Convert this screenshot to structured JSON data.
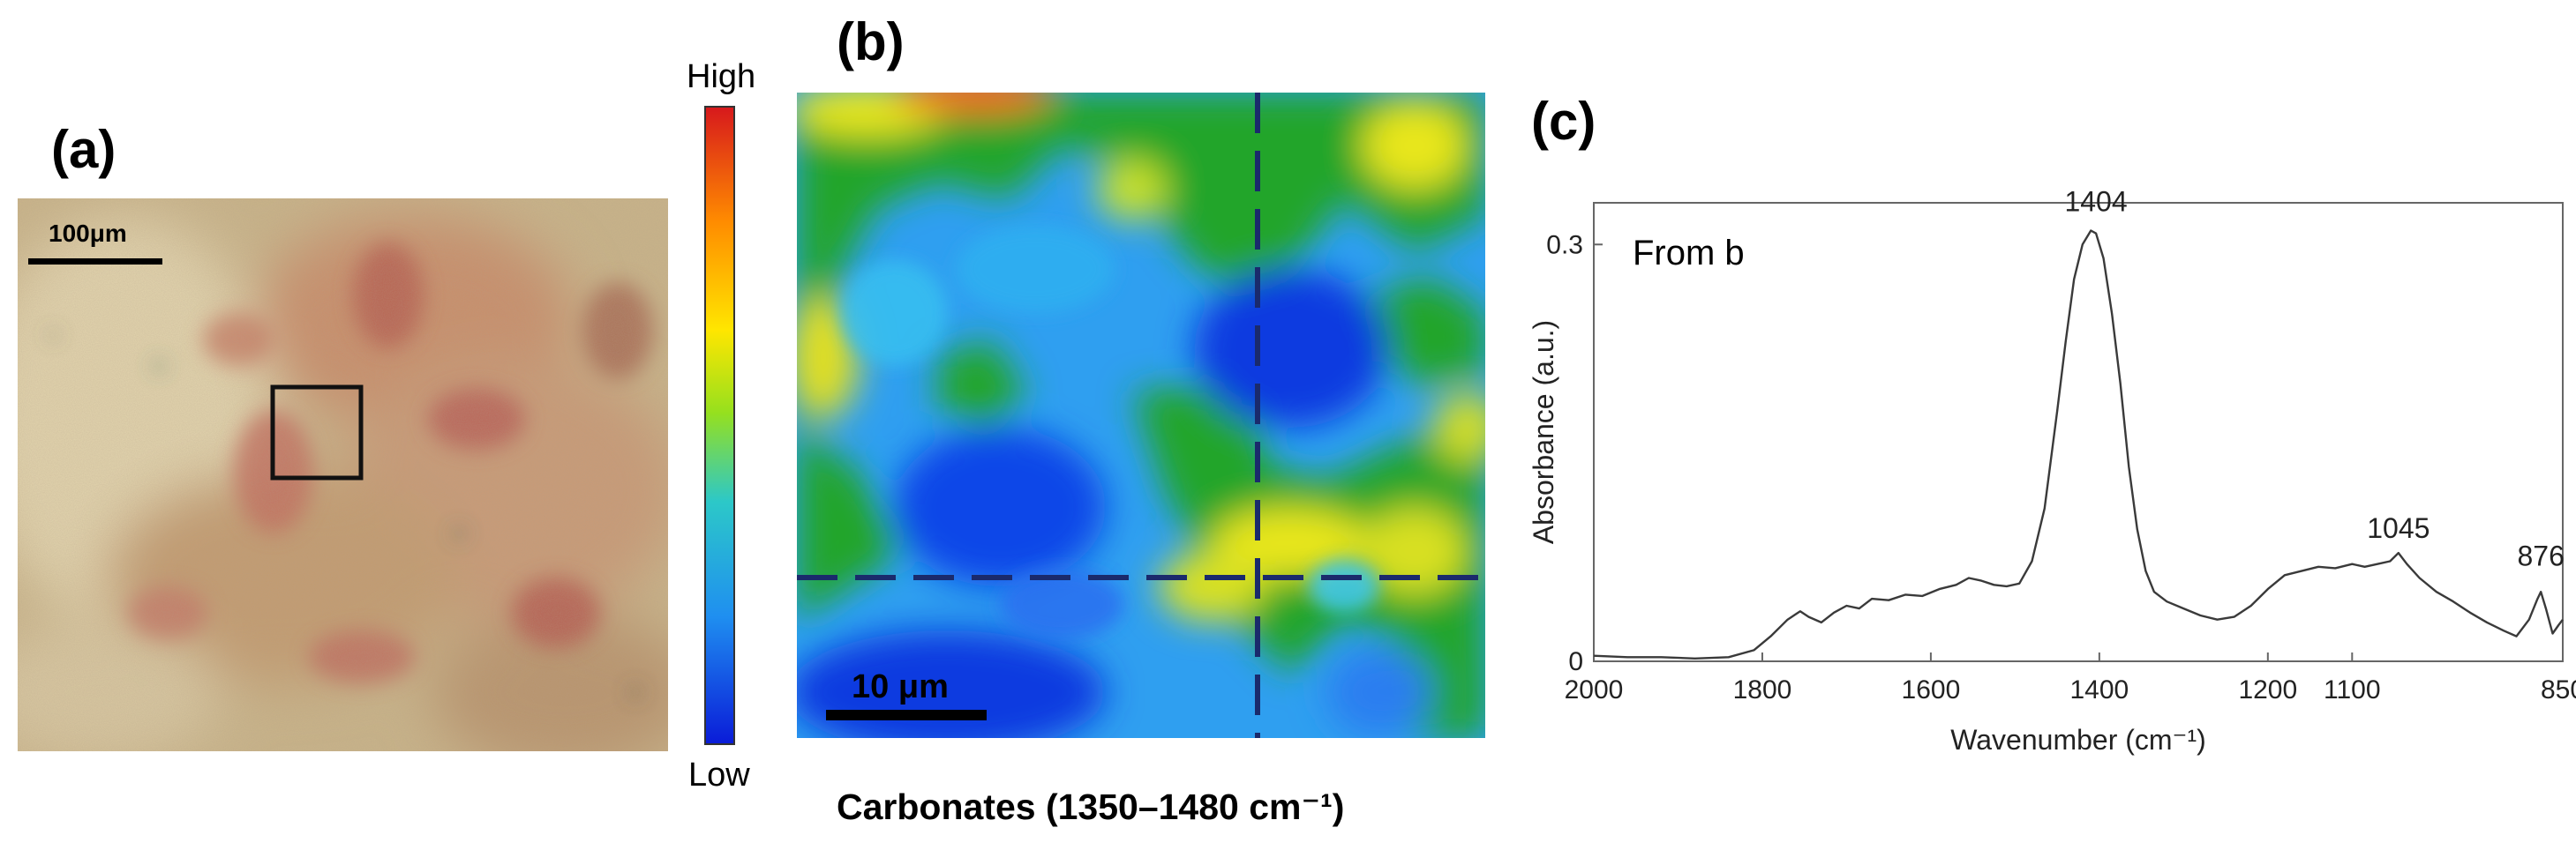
{
  "panels": {
    "a": {
      "label": "(a)",
      "scale_bar": "100μm"
    },
    "b": {
      "label": "(b)",
      "colorbar": {
        "high": "High",
        "low": "Low"
      },
      "scale_bar": "10 μm",
      "caption": "Carbonates (1350–1480 cm⁻¹)"
    },
    "c": {
      "label": "(c)",
      "annotation": "From b"
    }
  },
  "colors": {
    "map_low": "#0a1cd8",
    "map_mid": "#32b4f0",
    "map_green": "#1fa528",
    "map_high": "#d7191c",
    "crosshair": "#1a2a6c",
    "spectrum_line": "#3a3a3a"
  },
  "chart_data": {
    "type": "line",
    "title": "",
    "xlabel": "Wavenumber (cm⁻¹)",
    "ylabel": "Absorbance (a.u.)",
    "xlim": [
      2000,
      850
    ],
    "ylim": [
      0,
      0.33
    ],
    "x_reversed": true,
    "xticks": [
      2000,
      1800,
      1600,
      1400,
      1200,
      1100,
      850
    ],
    "yticks": [
      0,
      0.3
    ],
    "grid": false,
    "peak_labels": [
      {
        "x": 1404,
        "y": 0.31,
        "label": "1404"
      },
      {
        "x": 1045,
        "y": 0.075,
        "label": "1045"
      },
      {
        "x": 876,
        "y": 0.055,
        "label": "876"
      }
    ],
    "series": [
      {
        "x": [
          2000,
          1960,
          1920,
          1880,
          1840,
          1810,
          1790,
          1770,
          1755,
          1745,
          1730,
          1715,
          1700,
          1685,
          1670,
          1650,
          1630,
          1610,
          1590,
          1570,
          1555,
          1540,
          1525,
          1510,
          1495,
          1480,
          1465,
          1450,
          1440,
          1430,
          1420,
          1410,
          1404,
          1395,
          1385,
          1375,
          1365,
          1355,
          1345,
          1335,
          1320,
          1300,
          1280,
          1260,
          1240,
          1220,
          1200,
          1180,
          1160,
          1140,
          1120,
          1100,
          1085,
          1070,
          1055,
          1045,
          1035,
          1020,
          1000,
          980,
          960,
          940,
          920,
          905,
          890,
          880,
          876,
          870,
          862,
          855,
          850
        ],
        "y": [
          0.004,
          0.003,
          0.003,
          0.002,
          0.003,
          0.008,
          0.018,
          0.03,
          0.036,
          0.032,
          0.028,
          0.035,
          0.04,
          0.038,
          0.045,
          0.044,
          0.048,
          0.047,
          0.052,
          0.055,
          0.06,
          0.058,
          0.055,
          0.054,
          0.056,
          0.072,
          0.11,
          0.18,
          0.23,
          0.275,
          0.3,
          0.31,
          0.308,
          0.29,
          0.25,
          0.2,
          0.14,
          0.095,
          0.065,
          0.05,
          0.043,
          0.038,
          0.033,
          0.03,
          0.032,
          0.04,
          0.052,
          0.062,
          0.065,
          0.068,
          0.067,
          0.07,
          0.068,
          0.07,
          0.072,
          0.078,
          0.07,
          0.06,
          0.05,
          0.043,
          0.035,
          0.028,
          0.022,
          0.018,
          0.03,
          0.045,
          0.05,
          0.038,
          0.02,
          0.026,
          0.03
        ]
      }
    ]
  }
}
